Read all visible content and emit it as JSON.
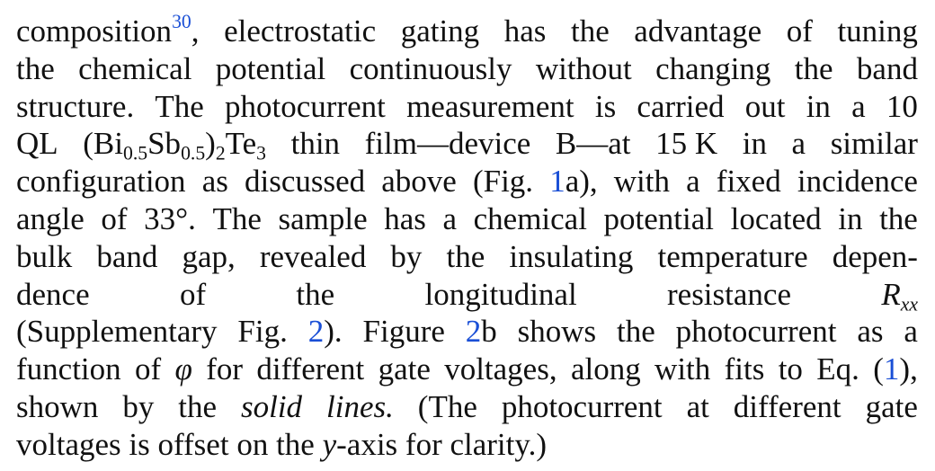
{
  "colors": {
    "text": "#111111",
    "link": "#1a4fd6",
    "background": "#ffffff"
  },
  "text": {
    "l1_composition": "composition",
    "l1_ref30": "30",
    "l1_comma": ",",
    "l1_w": [
      "electrostatic",
      "gating",
      "has",
      "the",
      "advantage",
      "of",
      "tuning"
    ],
    "l2_w": [
      "the",
      "chemical",
      "potential",
      "continuously",
      "without",
      "changing",
      "the",
      "band"
    ],
    "l3_w": [
      "structure.",
      "The",
      "photocurrent",
      "measurement",
      "is",
      "carried",
      "out",
      "in",
      "a",
      "10"
    ],
    "l4_QL": "QL",
    "l4_formula_open": "(Bi",
    "l4_sub1": "0.5",
    "l4_Sb": "Sb",
    "l4_sub2": "0.5",
    "l4_close": ")",
    "l4_sub3": "2",
    "l4_Te": "Te",
    "l4_sub4": "3",
    "l4_w": [
      "thin",
      "film—device",
      "B—at",
      "15 K",
      "in",
      "a",
      "similar"
    ],
    "l5_pre": [
      "configuration",
      "as",
      "discussed",
      "above"
    ],
    "l5_figopen": "(Fig.",
    "l5_ref1": "1",
    "l5_a": "a),",
    "l5_post": [
      "with",
      "a",
      "fixed",
      "incidence"
    ],
    "l6_w": [
      "angle",
      "of",
      "33°.",
      "The",
      "sample",
      "has",
      "a",
      "chemical",
      "potential",
      "located",
      "in",
      "the"
    ],
    "l7_w": [
      "bulk",
      "band",
      "gap,",
      "revealed",
      "by",
      "the",
      "insulating",
      "temperature",
      "depen-"
    ],
    "l8_w": [
      "dence",
      "of",
      "the",
      "longitudinal",
      "resistance"
    ],
    "l8_R": "R",
    "l8_sub": "xx",
    "l9_open": "(Supplementary",
    "l9_fig": "Fig.",
    "l9_ref2": "2",
    "l9_close": ").",
    "l9_figure": "Figure",
    "l9_ref2b": "2",
    "l9_b": "b",
    "l9_post": [
      "shows",
      "the",
      "photocurrent",
      "as",
      "a"
    ],
    "l10_pre": [
      "function",
      "of"
    ],
    "l10_phi": "φ",
    "l10_post": [
      "for",
      "different",
      "gate",
      "voltages,",
      "along",
      "with",
      "fits",
      "to",
      "Eq."
    ],
    "l10_paren_open": "(",
    "l10_ref1": "1",
    "l10_paren_close": "),",
    "l11_pre": [
      "shown",
      "by",
      "the"
    ],
    "l11_solid": "solid",
    "l11_lines": "lines.",
    "l11_post": [
      "(The",
      "photocurrent",
      "at",
      "different",
      "gate"
    ],
    "l12_pre": [
      "voltages",
      "is",
      "offset",
      "on",
      "the"
    ],
    "l12_y": "y",
    "l12_axis": "-axis",
    "l12_post": [
      "for",
      "clarity.)"
    ]
  }
}
